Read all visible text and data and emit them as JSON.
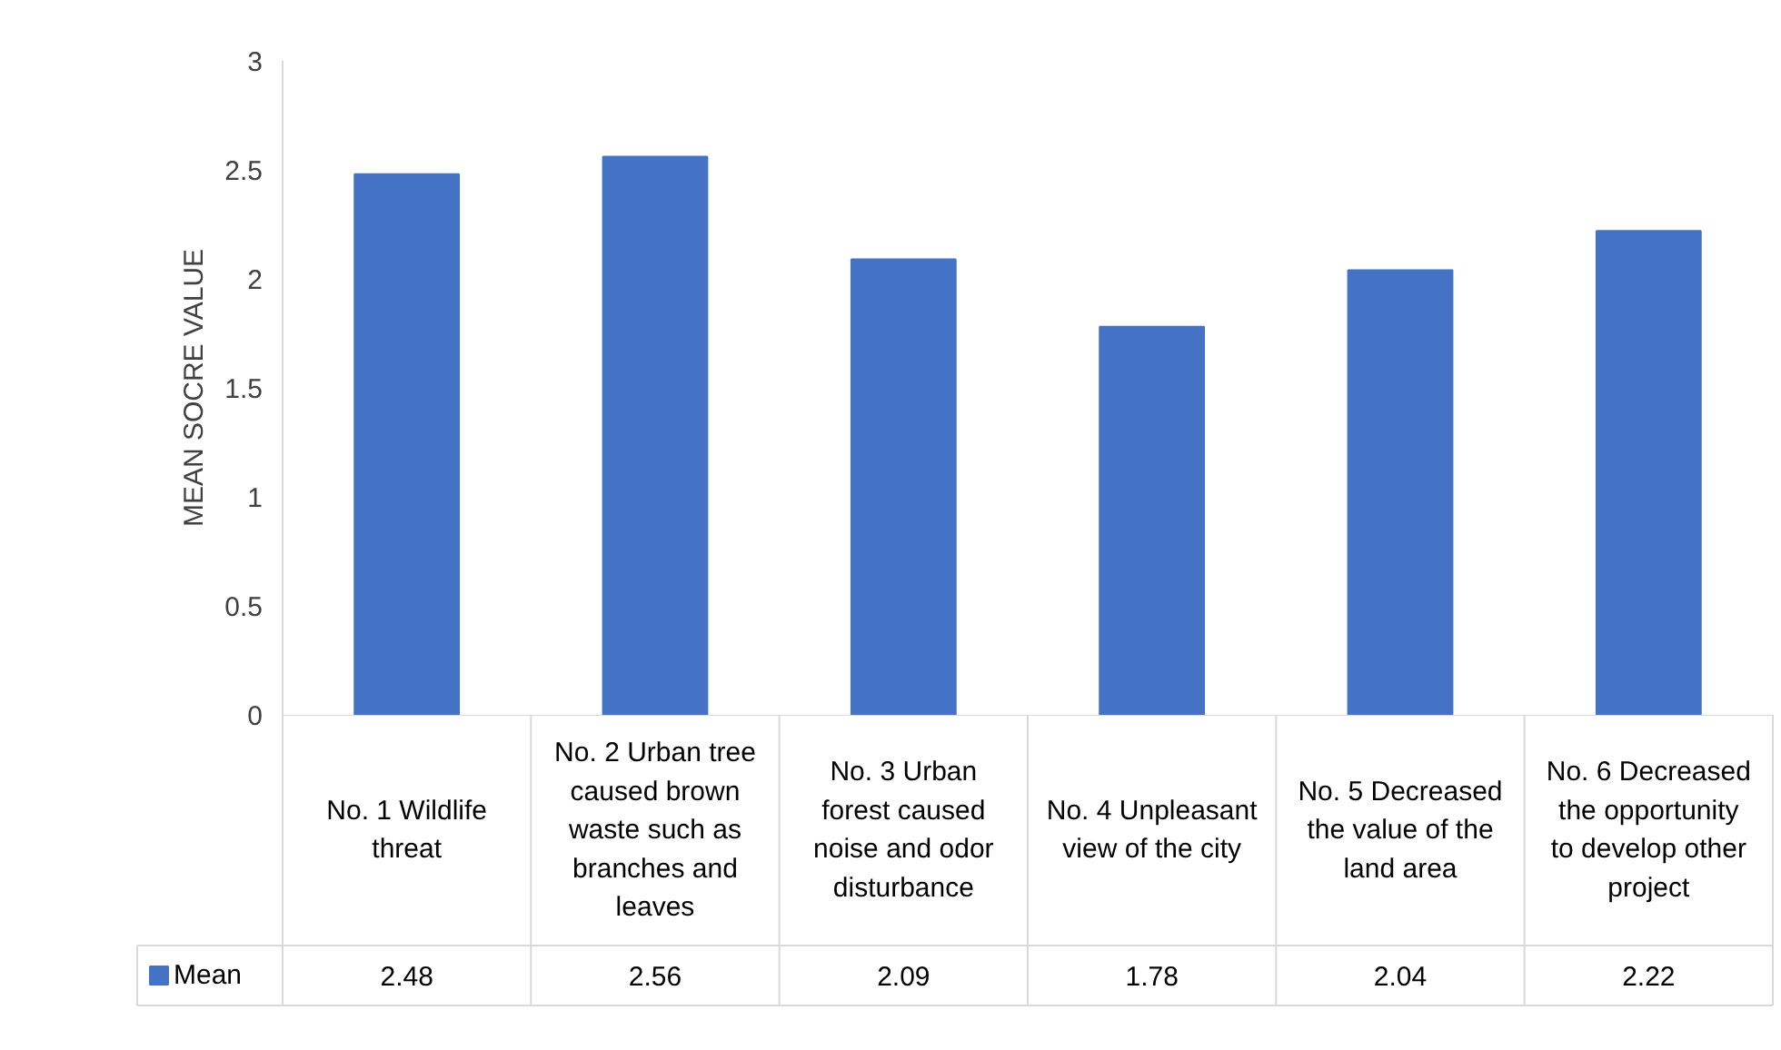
{
  "chart_data": {
    "type": "bar",
    "ylabel": "MEAN SOCRE VALUE",
    "categories": [
      "No. 1 Wildlife threat",
      "No. 2 Urban tree caused brown waste such as branches and leaves",
      "No. 3 Urban forest caused noise and odor disturbance",
      "No. 4 Unpleasant view of the city",
      "No. 5 Decreased the value of the land area",
      "No. 6 Decreased the opportunity to develop other project"
    ],
    "series": [
      {
        "name": "Mean",
        "color": "#4472c4",
        "values": [
          2.48,
          2.56,
          2.09,
          1.78,
          2.04,
          2.22
        ]
      }
    ],
    "ylim": [
      0,
      3
    ],
    "yticks": [
      0,
      0.5,
      1,
      1.5,
      2,
      2.5,
      3
    ],
    "grid": false,
    "legend": "bottom",
    "data_labels": true
  }
}
